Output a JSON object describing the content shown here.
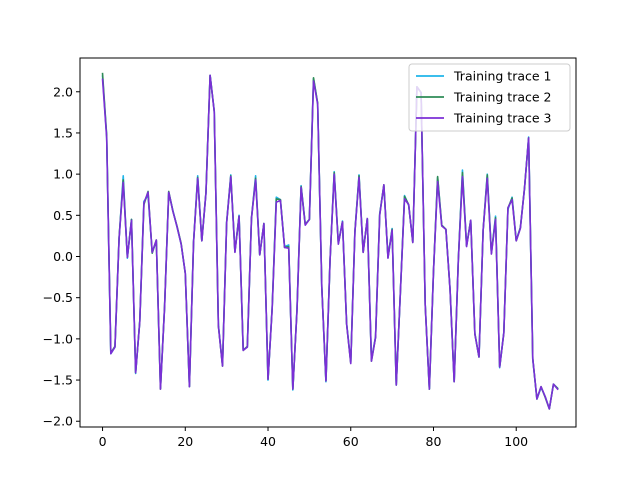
{
  "chart_data": {
    "type": "line",
    "title": "",
    "xlabel": "",
    "ylabel": "",
    "xlim": [
      -5.45,
      114.45
    ],
    "ylim": [
      -2.07,
      2.41
    ],
    "xticks": [
      0,
      20,
      40,
      60,
      80,
      100
    ],
    "yticks": [
      -2.0,
      -1.5,
      -1.0,
      -0.5,
      0.0,
      0.5,
      1.0,
      1.5,
      2.0
    ],
    "xtick_labels": [
      "0",
      "20",
      "40",
      "60",
      "80",
      "100"
    ],
    "ytick_labels": [
      "−2.0",
      "−1.5",
      "−1.0",
      "−0.5",
      "0.0",
      "0.5",
      "1.0",
      "1.5",
      "2.0"
    ],
    "grid": false,
    "legend_position": "top-right",
    "series": [
      {
        "name": "Training trace 1",
        "color": "#1fb5ea",
        "values": [
          2.19,
          1.46,
          -1.18,
          -1.1,
          0.22,
          0.98,
          -0.02,
          0.45,
          -1.42,
          -0.78,
          0.67,
          0.74,
          0.05,
          0.19,
          -1.6,
          -0.61,
          0.78,
          0.56,
          0.36,
          0.15,
          -0.2,
          -1.58,
          0.18,
          0.98,
          0.19,
          0.77,
          2.2,
          1.77,
          -0.83,
          -1.32,
          0.42,
          0.99,
          0.06,
          0.5,
          -1.13,
          -1.1,
          0.46,
          0.98,
          0.02,
          0.4,
          -1.5,
          -0.62,
          0.72,
          0.69,
          0.12,
          0.14,
          -1.62,
          -0.64,
          0.86,
          0.39,
          0.45,
          2.16,
          1.86,
          -0.37,
          -1.52,
          -0.04,
          1.03,
          0.16,
          0.43,
          -0.81,
          -1.28,
          0.3,
          0.99,
          0.06,
          0.46,
          -1.25,
          -0.97,
          0.52,
          0.86,
          -0.01,
          0.34,
          -1.56,
          -0.43,
          0.74,
          0.62,
          0.18,
          2.06,
          1.99,
          -0.58,
          -1.61,
          -0.19,
          0.96,
          0.38,
          0.33,
          -0.39,
          -1.52,
          -0.04,
          1.05,
          0.13,
          0.44,
          -0.93,
          -1.22,
          0.32,
          1.0,
          0.04,
          0.49,
          -1.35,
          -0.92,
          0.57,
          0.72,
          0.2,
          0.35,
          0.82,
          1.45,
          -1.25,
          -1.73,
          -1.59,
          -1.7,
          -1.85,
          -1.55,
          -1.6
        ]
      },
      {
        "name": "Training trace 2",
        "color": "#2e8b57",
        "values": [
          2.22,
          1.47,
          -1.17,
          -1.09,
          0.23,
          0.93,
          -0.01,
          0.45,
          -1.41,
          -0.79,
          0.63,
          0.79,
          0.04,
          0.2,
          -1.61,
          -0.6,
          0.79,
          0.55,
          0.37,
          0.16,
          -0.21,
          -1.58,
          0.17,
          0.96,
          0.19,
          0.78,
          2.2,
          1.76,
          -0.84,
          -1.33,
          0.41,
          0.98,
          0.06,
          0.49,
          -1.14,
          -1.09,
          0.47,
          0.95,
          0.02,
          0.4,
          -1.49,
          -0.63,
          0.7,
          0.69,
          0.11,
          0.12,
          -1.61,
          -0.66,
          0.85,
          0.39,
          0.45,
          2.17,
          1.86,
          -0.37,
          -1.51,
          -0.04,
          1.02,
          0.16,
          0.42,
          -0.82,
          -1.29,
          0.3,
          0.98,
          0.05,
          0.46,
          -1.27,
          -0.98,
          0.51,
          0.87,
          -0.01,
          0.33,
          -1.56,
          -0.43,
          0.73,
          0.63,
          0.17,
          2.06,
          1.99,
          -0.59,
          -1.61,
          -0.18,
          0.97,
          0.38,
          0.33,
          -0.4,
          -1.52,
          -0.05,
          1.02,
          0.13,
          0.44,
          -0.94,
          -1.22,
          0.32,
          0.99,
          0.04,
          0.47,
          -1.34,
          -0.93,
          0.59,
          0.71,
          0.19,
          0.35,
          0.83,
          1.44,
          -1.24,
          -1.73,
          -1.58,
          -1.71,
          -1.85,
          -1.55,
          -1.6
        ]
      },
      {
        "name": "Training trace 3",
        "color": "#7b2fd6",
        "values": [
          2.15,
          1.44,
          -1.18,
          -1.1,
          0.22,
          0.9,
          -0.01,
          0.44,
          -1.41,
          -0.79,
          0.65,
          0.78,
          0.05,
          0.2,
          -1.61,
          -0.61,
          0.78,
          0.55,
          0.36,
          0.15,
          -0.2,
          -1.58,
          0.17,
          0.95,
          0.19,
          0.77,
          2.2,
          1.76,
          -0.84,
          -1.33,
          0.41,
          0.97,
          0.05,
          0.49,
          -1.14,
          -1.1,
          0.46,
          0.93,
          0.02,
          0.4,
          -1.49,
          -0.64,
          0.66,
          0.68,
          0.11,
          0.1,
          -1.61,
          -0.66,
          0.84,
          0.38,
          0.45,
          2.13,
          1.85,
          -0.37,
          -1.51,
          -0.04,
          1.0,
          0.15,
          0.42,
          -0.82,
          -1.3,
          0.29,
          0.96,
          0.05,
          0.46,
          -1.27,
          -0.98,
          0.5,
          0.87,
          -0.02,
          0.32,
          -1.56,
          -0.43,
          0.7,
          0.63,
          0.17,
          2.06,
          1.99,
          -0.59,
          -1.61,
          -0.18,
          0.91,
          0.37,
          0.33,
          -0.4,
          -1.52,
          -0.05,
          0.97,
          0.12,
          0.44,
          -0.94,
          -1.22,
          0.32,
          0.95,
          0.03,
          0.45,
          -1.34,
          -0.93,
          0.59,
          0.69,
          0.19,
          0.34,
          0.83,
          1.44,
          -1.24,
          -1.73,
          -1.58,
          -1.7,
          -1.85,
          -1.55,
          -1.61
        ]
      }
    ]
  }
}
